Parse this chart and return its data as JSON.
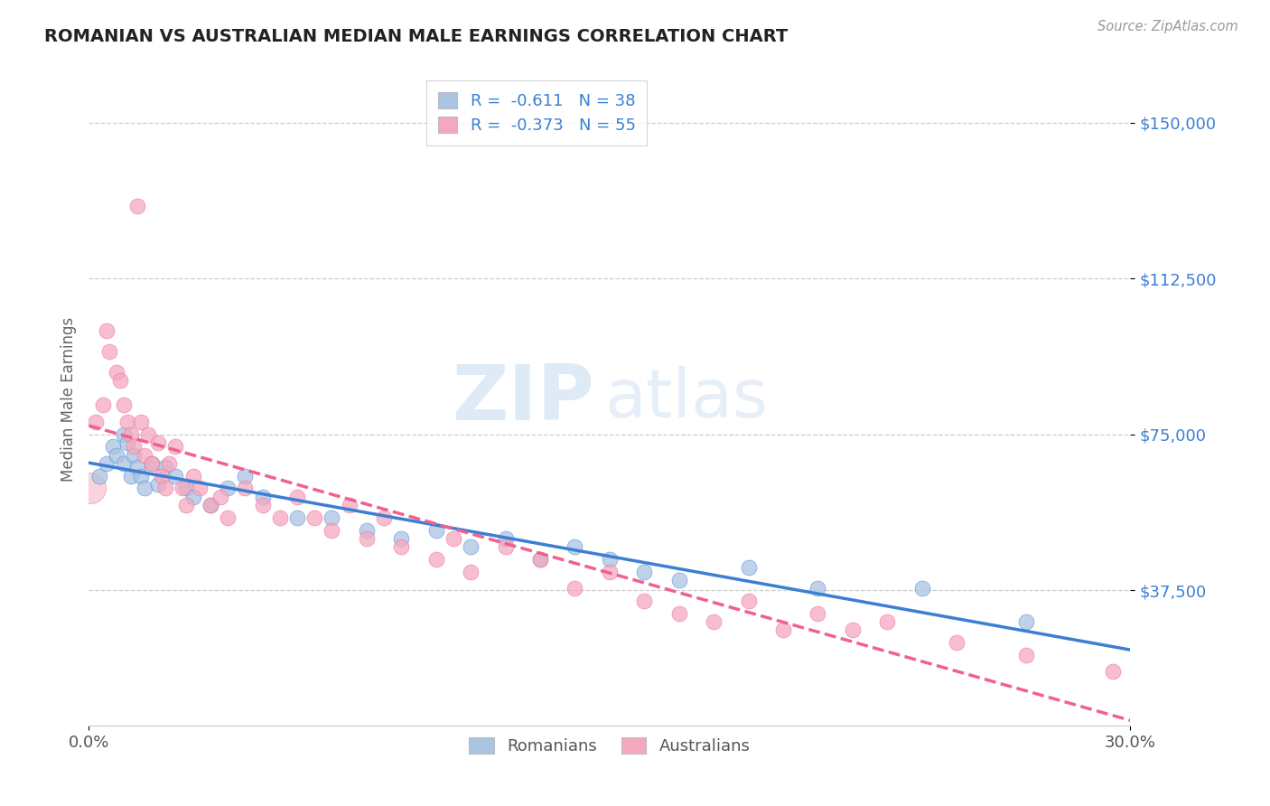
{
  "title": "ROMANIAN VS AUSTRALIAN MEDIAN MALE EARNINGS CORRELATION CHART",
  "source": "Source: ZipAtlas.com",
  "ylabel": "Median Male Earnings",
  "yticks": [
    37500,
    75000,
    112500,
    150000
  ],
  "ytick_labels": [
    "$37,500",
    "$75,000",
    "$112,500",
    "$150,000"
  ],
  "xmin": 0.0,
  "xmax": 30.0,
  "ymin": 5000,
  "ymax": 162000,
  "romanians_color": "#aac4e2",
  "australians_color": "#f4a8be",
  "trend_romanian_color": "#3b7fd4",
  "trend_australian_color": "#f06090",
  "watermark_zip": "ZIP",
  "watermark_atlas": "atlas",
  "legend_r_romanian": "R =  -0.611",
  "legend_n_romanian": "N = 38",
  "legend_r_australian": "R =  -0.373",
  "legend_n_australian": "N = 55",
  "romanians_x": [
    0.3,
    0.5,
    0.7,
    0.8,
    1.0,
    1.0,
    1.1,
    1.2,
    1.3,
    1.4,
    1.5,
    1.6,
    1.8,
    2.0,
    2.2,
    2.5,
    2.8,
    3.0,
    3.5,
    4.0,
    4.5,
    5.0,
    6.0,
    7.0,
    8.0,
    9.0,
    10.0,
    11.0,
    12.0,
    13.0,
    14.0,
    15.0,
    16.0,
    17.0,
    19.0,
    21.0,
    24.0,
    27.0
  ],
  "romanians_y": [
    65000,
    68000,
    72000,
    70000,
    75000,
    68000,
    73000,
    65000,
    70000,
    67000,
    65000,
    62000,
    68000,
    63000,
    67000,
    65000,
    62000,
    60000,
    58000,
    62000,
    65000,
    60000,
    55000,
    55000,
    52000,
    50000,
    52000,
    48000,
    50000,
    45000,
    48000,
    45000,
    42000,
    40000,
    43000,
    38000,
    38000,
    30000
  ],
  "australians_x": [
    0.2,
    0.4,
    0.5,
    0.6,
    0.8,
    0.9,
    1.0,
    1.1,
    1.2,
    1.3,
    1.4,
    1.5,
    1.6,
    1.7,
    1.8,
    2.0,
    2.1,
    2.2,
    2.3,
    2.5,
    2.7,
    2.8,
    3.0,
    3.2,
    3.5,
    3.8,
    4.0,
    4.5,
    5.0,
    5.5,
    6.0,
    6.5,
    7.0,
    7.5,
    8.0,
    8.5,
    9.0,
    10.0,
    10.5,
    11.0,
    12.0,
    13.0,
    14.0,
    15.0,
    16.0,
    17.0,
    18.0,
    19.0,
    20.0,
    21.0,
    22.0,
    23.0,
    25.0,
    27.0,
    29.5
  ],
  "australians_y": [
    78000,
    82000,
    100000,
    95000,
    90000,
    88000,
    82000,
    78000,
    75000,
    72000,
    130000,
    78000,
    70000,
    75000,
    68000,
    73000,
    65000,
    62000,
    68000,
    72000,
    62000,
    58000,
    65000,
    62000,
    58000,
    60000,
    55000,
    62000,
    58000,
    55000,
    60000,
    55000,
    52000,
    58000,
    50000,
    55000,
    48000,
    45000,
    50000,
    42000,
    48000,
    45000,
    38000,
    42000,
    35000,
    32000,
    30000,
    35000,
    28000,
    32000,
    28000,
    30000,
    25000,
    22000,
    18000
  ]
}
